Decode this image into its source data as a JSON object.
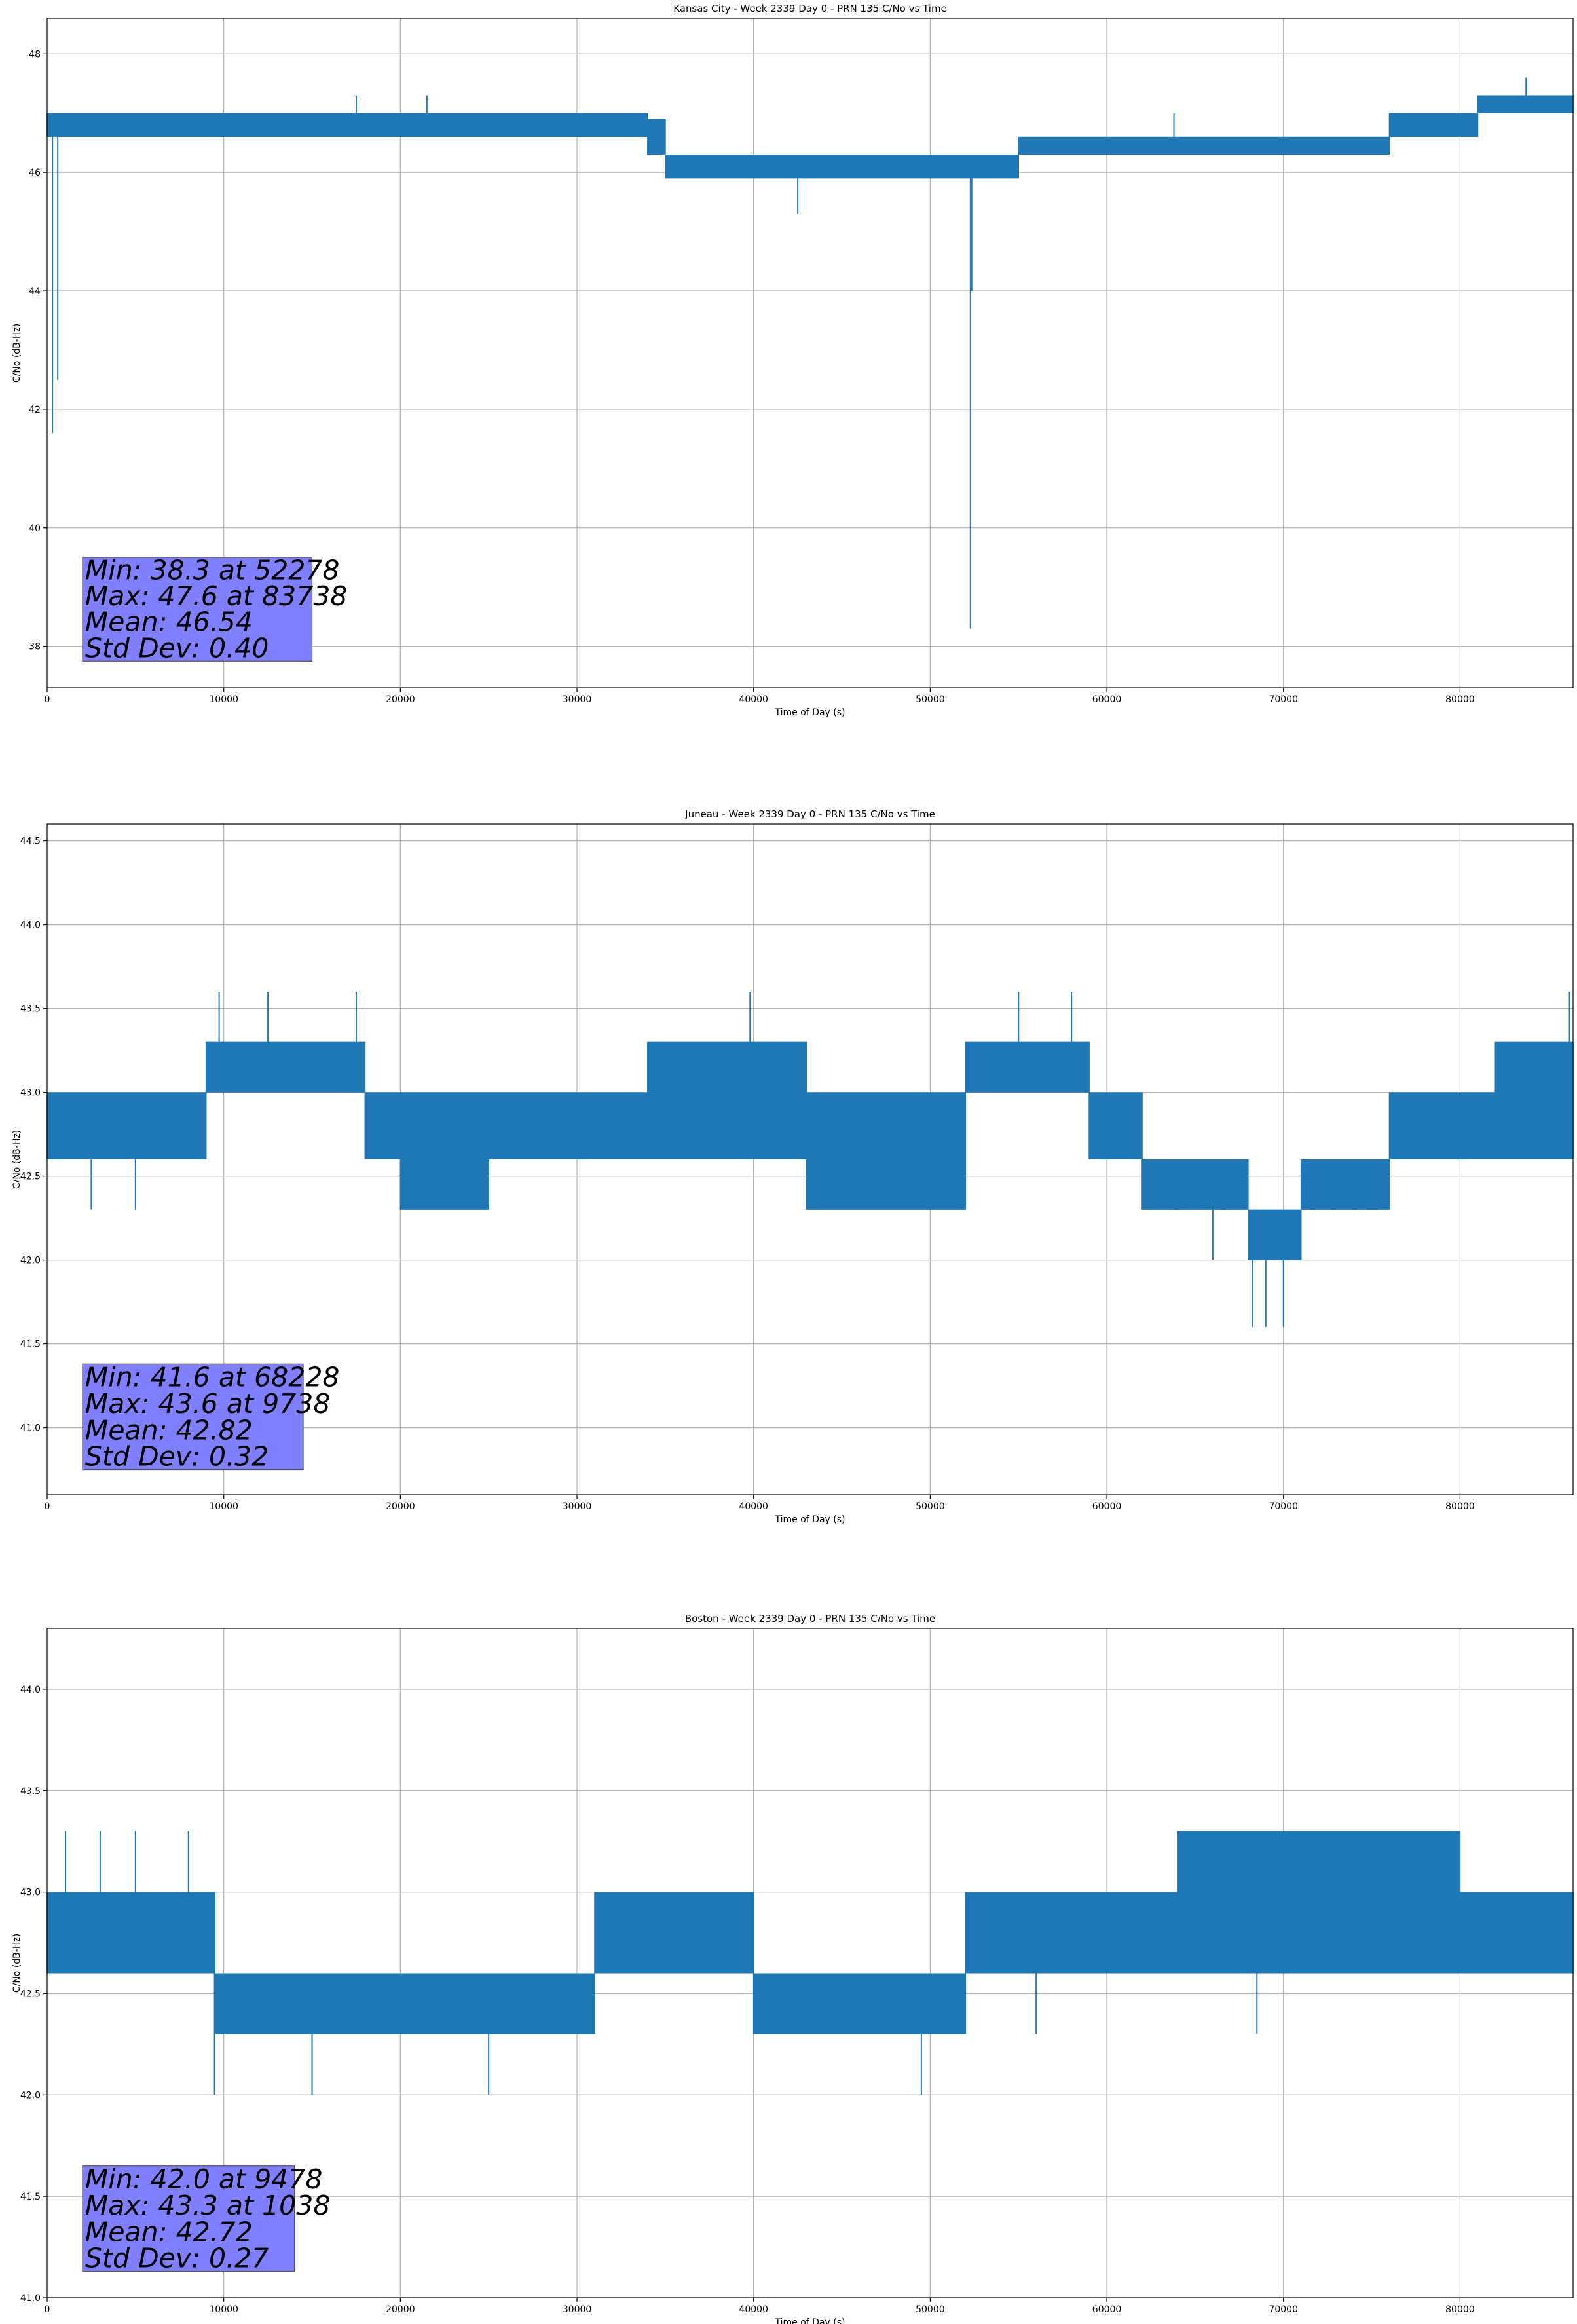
{
  "colors": {
    "series": "#1f77b4",
    "grid": "#b0b0b0",
    "stats_box_fill": "#8080ff",
    "stats_box_edge": "#555555",
    "axes": "#000000"
  },
  "chart_data": [
    {
      "type": "line",
      "title": "Kansas City - Week 2339 Day 0 - PRN 135 C/No vs Time",
      "xlabel": "Time of Day (s)",
      "ylabel": "C/No (dB-Hz)",
      "xlim": [
        0,
        86400
      ],
      "ylim": [
        37.3,
        48.6
      ],
      "xticks": [
        0,
        10000,
        20000,
        30000,
        40000,
        50000,
        60000,
        70000,
        80000
      ],
      "yticks": [
        38,
        40,
        42,
        44,
        46,
        48
      ],
      "ytick_labels": [
        "38",
        "40",
        "42",
        "44",
        "46",
        "48"
      ],
      "grid": true,
      "series": [
        {
          "band_segments": [
            [
              0,
              34000,
              46.6,
              47.0
            ],
            [
              34000,
              35000,
              46.3,
              46.9
            ],
            [
              35000,
              55000,
              45.9,
              46.3
            ],
            [
              55000,
              65000,
              46.3,
              46.6
            ],
            [
              65000,
              76000,
              46.3,
              46.6
            ],
            [
              76000,
              81000,
              46.6,
              47.0
            ],
            [
              81000,
              86400,
              47.0,
              47.3
            ]
          ],
          "spikes": [
            [
              300,
              41.6
            ],
            [
              600,
              42.5
            ],
            [
              52278,
              38.3
            ],
            [
              52350,
              44.0
            ],
            [
              83738,
              47.6
            ],
            [
              17500,
              47.3
            ],
            [
              21500,
              47.3
            ],
            [
              63800,
              47.0
            ],
            [
              42500,
              45.3
            ]
          ]
        }
      ],
      "stats": {
        "lines": [
          "Min: 38.3 at 52278",
          "Max: 47.6 at 83738",
          "Mean: 46.54",
          "Std Dev: 0.40"
        ],
        "box_data": {
          "x0": 2000,
          "x1": 15000,
          "y_top": 39.5,
          "y_bottom": 37.75
        }
      }
    },
    {
      "type": "line",
      "title": "Juneau - Week 2339 Day 0 - PRN 135 C/No vs Time",
      "xlabel": "Time of Day (s)",
      "ylabel": "C/No (dB-Hz)",
      "xlim": [
        0,
        86400
      ],
      "ylim": [
        40.6,
        44.6
      ],
      "xticks": [
        0,
        10000,
        20000,
        30000,
        40000,
        50000,
        60000,
        70000,
        80000
      ],
      "yticks": [
        41.0,
        41.5,
        42.0,
        42.5,
        43.0,
        43.5,
        44.0,
        44.5
      ],
      "ytick_labels": [
        "41.0",
        "41.5",
        "42.0",
        "42.5",
        "43.0",
        "43.5",
        "44.0",
        "44.5"
      ],
      "grid": true,
      "series": [
        {
          "band_segments": [
            [
              0,
              9000,
              42.6,
              43.0
            ],
            [
              9000,
              18000,
              43.0,
              43.3
            ],
            [
              18000,
              20000,
              42.6,
              43.0
            ],
            [
              20000,
              25000,
              42.3,
              43.0
            ],
            [
              25000,
              34000,
              42.6,
              43.0
            ],
            [
              34000,
              43000,
              42.6,
              43.3
            ],
            [
              43000,
              52000,
              42.3,
              43.0
            ],
            [
              52000,
              59000,
              43.0,
              43.3
            ],
            [
              59000,
              62000,
              42.6,
              43.0
            ],
            [
              62000,
              68000,
              42.3,
              42.6
            ],
            [
              68000,
              71000,
              42.0,
              42.3
            ],
            [
              71000,
              76000,
              42.3,
              42.6
            ],
            [
              76000,
              82000,
              42.6,
              43.0
            ],
            [
              82000,
              86400,
              42.6,
              43.3
            ]
          ],
          "spikes": [
            [
              9738,
              43.6
            ],
            [
              12500,
              43.6
            ],
            [
              17500,
              43.6
            ],
            [
              39800,
              43.6
            ],
            [
              55000,
              43.6
            ],
            [
              58000,
              43.6
            ],
            [
              86200,
              43.6
            ],
            [
              68228,
              41.6
            ],
            [
              69000,
              41.6
            ],
            [
              70000,
              41.6
            ],
            [
              2500,
              42.3
            ],
            [
              5000,
              42.3
            ],
            [
              66000,
              42.0
            ]
          ]
        }
      ],
      "stats": {
        "lines": [
          "Min: 41.6 at 68228",
          "Max: 43.6 at 9738",
          "Mean: 42.82",
          "Std Dev: 0.32"
        ],
        "box_data": {
          "x0": 2000,
          "x1": 14500,
          "y_top": 41.38,
          "y_bottom": 40.75
        }
      }
    },
    {
      "type": "line",
      "title": "Boston - Week 2339 Day 0 - PRN 135 C/No vs Time",
      "xlabel": "Time of Day (s)",
      "ylabel": "C/No (dB-Hz)",
      "xlim": [
        0,
        86400
      ],
      "ylim": [
        41.0,
        44.3
      ],
      "xticks": [
        0,
        10000,
        20000,
        30000,
        40000,
        50000,
        60000,
        70000,
        80000
      ],
      "yticks": [
        41.0,
        41.5,
        42.0,
        42.5,
        43.0,
        43.5,
        44.0
      ],
      "ytick_labels": [
        "41.0",
        "41.5",
        "42.0",
        "42.5",
        "43.0",
        "43.5",
        "44.0"
      ],
      "grid": true,
      "series": [
        {
          "band_segments": [
            [
              0,
              9500,
              42.6,
              43.0
            ],
            [
              9500,
              23000,
              42.3,
              42.6
            ],
            [
              23000,
              31000,
              42.3,
              42.6
            ],
            [
              31000,
              40000,
              42.6,
              43.0
            ],
            [
              40000,
              52000,
              42.3,
              42.6
            ],
            [
              52000,
              64000,
              42.6,
              43.0
            ],
            [
              64000,
              80000,
              42.6,
              43.3
            ],
            [
              80000,
              86400,
              42.6,
              43.0
            ]
          ],
          "spikes": [
            [
              1038,
              43.3
            ],
            [
              3000,
              43.3
            ],
            [
              5000,
              43.3
            ],
            [
              8000,
              43.3
            ],
            [
              9478,
              42.0
            ],
            [
              15000,
              42.0
            ],
            [
              25000,
              42.0
            ],
            [
              49500,
              42.0
            ],
            [
              68500,
              42.3
            ],
            [
              56000,
              42.3
            ]
          ]
        }
      ],
      "stats": {
        "lines": [
          "Min: 42.0 at 9478",
          "Max: 43.3 at 1038",
          "Mean: 42.72",
          "Std Dev: 0.27"
        ],
        "box_data": {
          "x0": 2000,
          "x1": 14000,
          "y_top": 41.65,
          "y_bottom": 41.13
        }
      }
    }
  ]
}
